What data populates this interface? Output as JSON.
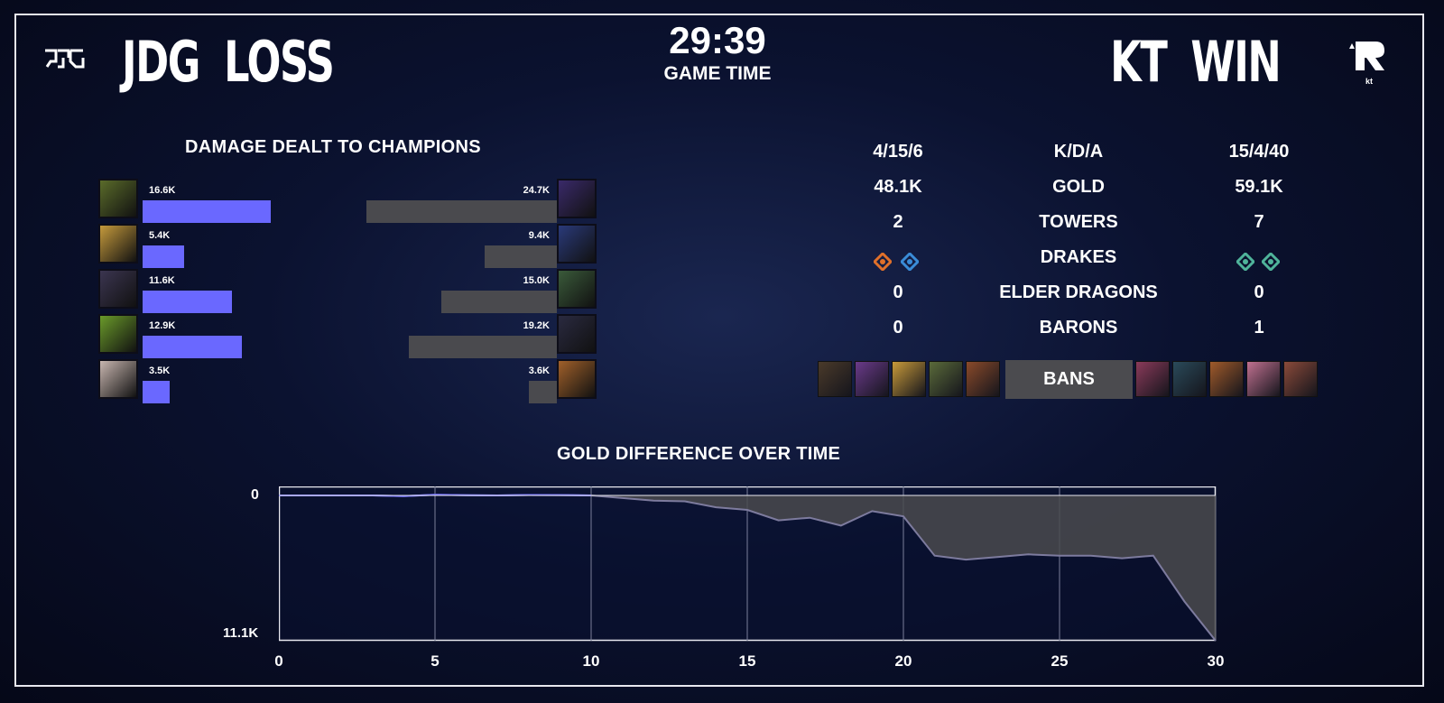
{
  "frame": {
    "left_team": {
      "tag": "JDG",
      "result": "LOSS",
      "logo_icon": "jdg-logo-icon"
    },
    "right_team": {
      "tag": "KT",
      "result": "WIN",
      "logo_icon": "kt-rolster-logo-icon",
      "logo_text": "kt"
    },
    "timer": {
      "time": "29:39",
      "label": "GAME TIME"
    }
  },
  "damage": {
    "title": "DAMAGE DEALT TO CHAMPIONS",
    "left": [
      {
        "label": "16.6K",
        "value": 16.6,
        "portrait": "#5a6b2a"
      },
      {
        "label": "5.4K",
        "value": 5.4,
        "portrait": "#c59a3c"
      },
      {
        "label": "11.6K",
        "value": 11.6,
        "portrait": "#3b3550"
      },
      {
        "label": "12.9K",
        "value": 12.9,
        "portrait": "#6a9a2a"
      },
      {
        "label": "3.5K",
        "value": 3.5,
        "portrait": "#c8b6b0"
      }
    ],
    "right": [
      {
        "label": "24.7K",
        "value": 24.7,
        "portrait": "#3a2a6a"
      },
      {
        "label": "9.4K",
        "value": 9.4,
        "portrait": "#2a3a7a"
      },
      {
        "label": "15.0K",
        "value": 15.0,
        "portrait": "#3a5a3a"
      },
      {
        "label": "19.2K",
        "value": 19.2,
        "portrait": "#2a2a40"
      },
      {
        "label": "3.6K",
        "value": 3.6,
        "portrait": "#a0602a"
      }
    ],
    "colors": {
      "left": "#6a68ff",
      "right": "#4a4a4e"
    }
  },
  "stats": {
    "rows": [
      {
        "left": "4/15/6",
        "label": "K/D/A",
        "right": "15/4/40"
      },
      {
        "left": "48.1K",
        "label": "GOLD",
        "right": "59.1K"
      },
      {
        "left": "2",
        "label": "TOWERS",
        "right": "7"
      },
      {
        "left": "",
        "label": "DRAKES",
        "right": ""
      },
      {
        "left": "0",
        "label": "ELDER DRAGONS",
        "right": "0"
      },
      {
        "left": "0",
        "label": "BARONS",
        "right": "1"
      }
    ],
    "drakes": {
      "left": [
        {
          "icon": "infernal-drake-icon",
          "color": "#e0702a"
        },
        {
          "icon": "ocean-drake-icon",
          "color": "#3a8cd8"
        }
      ],
      "right": [
        {
          "icon": "hextech-drake-icon",
          "color": "#4fb39a"
        },
        {
          "icon": "hextech-drake-icon",
          "color": "#4fb39a"
        }
      ]
    }
  },
  "bans": {
    "label": "BANS",
    "left": [
      "#4a3a2a",
      "#6a3a8a",
      "#c89a3a",
      "#5a6a3a",
      "#8a4a2a"
    ],
    "right": [
      "#8a3a5a",
      "#2a4a5a",
      "#a05a2a",
      "#c07090",
      "#8a4a3a"
    ]
  },
  "gold_chart": {
    "title": "GOLD DIFFERENCE OVER TIME",
    "chart_data": {
      "type": "area",
      "title": "GOLD DIFFERENCE OVER TIME",
      "x_ticks": [
        "0",
        "5",
        "10",
        "15",
        "20",
        "25",
        "30"
      ],
      "y_labels": {
        "top": "0",
        "bottom": "11.1K"
      },
      "xlim": [
        0,
        30
      ],
      "ylim": [
        -11100,
        0
      ],
      "x": [
        0,
        1,
        2,
        3,
        4,
        5,
        6,
        7,
        8,
        9,
        10,
        11,
        12,
        13,
        14,
        15,
        16,
        17,
        18,
        19,
        20,
        21,
        22,
        23,
        24,
        25,
        26,
        27,
        28,
        29,
        30
      ],
      "values": [
        0,
        0,
        0,
        0,
        -50,
        150,
        60,
        0,
        100,
        80,
        0,
        -200,
        -400,
        -450,
        -900,
        -1100,
        -1900,
        -1700,
        -2300,
        -1200,
        -1600,
        -4600,
        -4900,
        -4700,
        -4500,
        -4600,
        -4600,
        -4800,
        -4600,
        -8100,
        -11100
      ],
      "grid": true,
      "colors": {
        "ahead": "#6a68ff",
        "behind": "#4a4a4e"
      }
    }
  }
}
